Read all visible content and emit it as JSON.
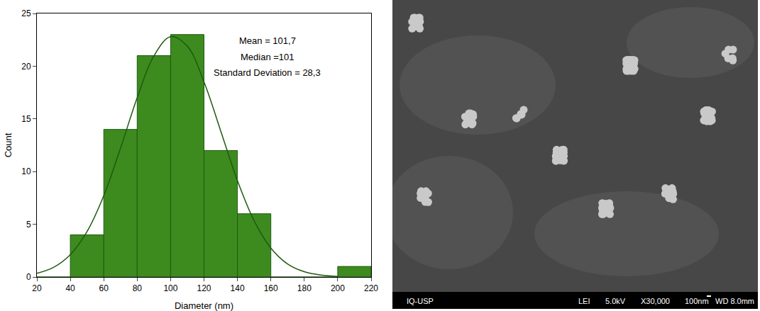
{
  "chart_data": {
    "type": "histogram",
    "x_label": "Diameter (nm)",
    "y_label": "Count",
    "bins": [
      20,
      40,
      60,
      80,
      100,
      120,
      140,
      160,
      180,
      200,
      220
    ],
    "values": [
      0,
      4,
      14,
      21,
      23,
      12,
      6,
      0,
      0,
      1
    ],
    "color": "#3d8b1f",
    "series": [
      {
        "type": "line",
        "color": "#1f5a10",
        "x": [
          20,
          30,
          40,
          50,
          60,
          70,
          80,
          90,
          100,
          110,
          120,
          130,
          140,
          150,
          160,
          170,
          180,
          190,
          200
        ],
        "values": [
          0.35,
          0.92,
          2.12,
          4.31,
          7.71,
          12.2,
          17.0,
          20.97,
          22.8,
          21.9,
          18.5,
          13.85,
          9.14,
          5.33,
          2.74,
          1.24,
          0.5,
          0.18,
          0.05
        ]
      }
    ],
    "annotations": [
      "Mean = 101,7",
      "Median =101",
      "Standard Deviation = 28,3"
    ],
    "xlim": [
      20,
      220
    ],
    "xticks": [
      20,
      40,
      60,
      80,
      100,
      120,
      140,
      160,
      180,
      200,
      220
    ],
    "ylim": [
      0,
      25
    ],
    "yticks": [
      0,
      5,
      10,
      15,
      20,
      25
    ],
    "grid": false
  },
  "image_panel": {
    "footer": [
      "IQ-USP",
      "LEI",
      "5.0kV",
      "X30,000",
      "100nm",
      "WD 8.0mm"
    ]
  }
}
